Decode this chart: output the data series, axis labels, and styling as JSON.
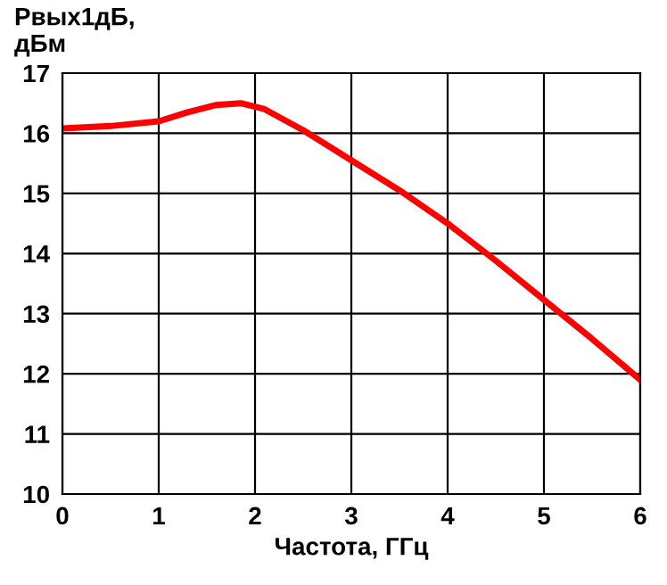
{
  "chart_data": {
    "type": "line",
    "ylabel": "Рвых1дБ,\nдБм",
    "xlabel": "Частота, ГГц",
    "x": [
      0,
      0.5,
      1,
      1.3,
      1.6,
      1.85,
      2.1,
      2.5,
      3,
      3.5,
      4,
      4.5,
      5,
      5.5,
      6
    ],
    "series": [
      {
        "color": "#ff0000",
        "values": [
          16.08,
          16.12,
          16.2,
          16.35,
          16.47,
          16.5,
          16.4,
          16.05,
          15.55,
          15.05,
          14.5,
          13.88,
          13.23,
          12.58,
          11.9
        ]
      }
    ],
    "xlim": [
      0,
      6
    ],
    "xticks": [
      0,
      1,
      2,
      3,
      4,
      5,
      6
    ],
    "ylim": [
      10,
      17
    ],
    "yticks": [
      10,
      11,
      12,
      13,
      14,
      15,
      16,
      17
    ],
    "grid": true,
    "marker": "none",
    "line_style": "solid"
  }
}
